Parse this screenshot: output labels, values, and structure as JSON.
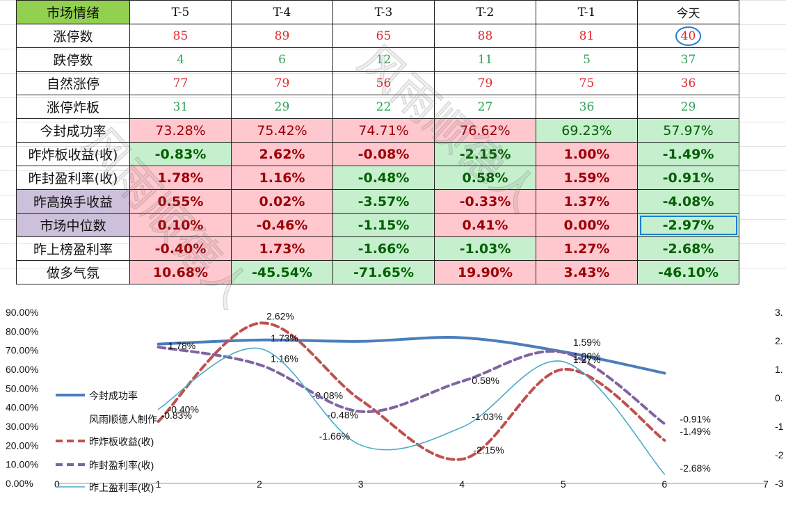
{
  "table": {
    "corner": "市场情绪",
    "headers": [
      "T-5",
      "T-4",
      "T-3",
      "T-2",
      "T-1",
      "今天"
    ],
    "rows": [
      {
        "label": "涨停数",
        "values": [
          "85",
          "89",
          "65",
          "88",
          "81",
          "40"
        ]
      },
      {
        "label": "跌停数",
        "values": [
          "4",
          "6",
          "12",
          "11",
          "5",
          "37"
        ]
      },
      {
        "label": "自然涨停",
        "values": [
          "77",
          "79",
          "56",
          "79",
          "75",
          "36"
        ]
      },
      {
        "label": "涨停炸板",
        "values": [
          "31",
          "29",
          "22",
          "27",
          "36",
          "29"
        ]
      },
      {
        "label": "今封成功率",
        "values": [
          "73.28%",
          "75.42%",
          "74.71%",
          "76.62%",
          "69.23%",
          "57.97%"
        ]
      },
      {
        "label": "昨炸板收益(收)",
        "values": [
          "-0.83%",
          "2.62%",
          "-0.08%",
          "-2.15%",
          "1.00%",
          "-1.49%"
        ]
      },
      {
        "label": "昨封盈利率(收)",
        "values": [
          "1.78%",
          "1.16%",
          "-0.48%",
          "0.58%",
          "1.59%",
          "-0.91%"
        ]
      },
      {
        "label": "昨高换手收益",
        "values": [
          "0.55%",
          "0.02%",
          "-3.57%",
          "-0.33%",
          "1.37%",
          "-4.08%"
        ]
      },
      {
        "label": "市场中位数",
        "values": [
          "0.10%",
          "-0.46%",
          "-1.15%",
          "0.41%",
          "0.00%",
          "-2.97%"
        ]
      },
      {
        "label": "昨上榜盈利率",
        "values": [
          "-0.40%",
          "1.73%",
          "-1.66%",
          "-1.03%",
          "1.27%",
          "-2.68%"
        ]
      },
      {
        "label": "做多气氛",
        "values": [
          "10.68%",
          "-45.54%",
          "-71.65%",
          "19.90%",
          "3.43%",
          "-46.10%"
        ]
      }
    ]
  },
  "watermark": {
    "text_a": "风雨顺德人",
    "text_b": "风雨顺德人"
  },
  "colors": {
    "red_text": "#e0282c",
    "green_text": "#2fa05a",
    "pink_fill": "#ffc7ce",
    "green_fill": "#c6efce",
    "purple_fill": "#ccc0da",
    "header_green": "#92d050",
    "highlight_blue": "#1b7fd6"
  },
  "chart_data": {
    "type": "line",
    "x": [
      1,
      2,
      3,
      4,
      5,
      6
    ],
    "xlim": [
      0,
      7
    ],
    "x_ticks": [
      "0",
      "1",
      "2",
      "3",
      "4",
      "5",
      "6",
      "7"
    ],
    "ylim_left": [
      0,
      90
    ],
    "y_ticks_left": [
      "0.00%",
      "10.00%",
      "20.00%",
      "30.00%",
      "40.00%",
      "50.00%",
      "60.00%",
      "70.00%",
      "80.00%",
      "90.00%"
    ],
    "ylim_right": [
      -3,
      3
    ],
    "y_ticks_right": [
      "3.",
      "2.",
      "1.",
      "0.",
      "-1",
      "-2",
      "-3"
    ],
    "series": [
      {
        "name": "今封成功率",
        "axis": "left",
        "color": "#4a7ebb",
        "style": "solid-thick",
        "values": [
          73.28,
          75.42,
          74.71,
          76.62,
          69.23,
          57.97
        ]
      },
      {
        "name": "昨炸板收益(收)",
        "axis": "right",
        "color": "#c0504d",
        "style": "dashed",
        "values": [
          -0.83,
          2.62,
          -0.08,
          -2.15,
          1.0,
          -1.49
        ],
        "labels": [
          "-0.83%",
          "2.62%",
          "-0.08%",
          "-2.15%",
          "1.00%",
          "-1.49%"
        ]
      },
      {
        "name": "昨封盈利率(收)",
        "axis": "right",
        "color": "#8064a2",
        "style": "dashed",
        "values": [
          1.78,
          1.16,
          -0.48,
          0.58,
          1.59,
          -0.91
        ],
        "labels": [
          "1.78%",
          "1.16%",
          "-0.48%",
          "0.58%",
          "1.59%",
          "-0.91%"
        ]
      },
      {
        "name": "昨上盈利率(收)",
        "axis": "right",
        "color": "#4bacc6",
        "style": "thin",
        "values": [
          -0.4,
          1.73,
          -1.66,
          -1.03,
          1.27,
          -2.68
        ],
        "labels": [
          "-0.40%",
          "1.73%",
          "-1.66%",
          "-1.03%",
          "1.27%",
          "-2.68%"
        ]
      }
    ],
    "legend_entries": [
      "今封成功率",
      "风雨顺德人制作",
      "昨炸板收益(收)",
      "昨封盈利率(收)",
      "昨上盈利率(收)"
    ],
    "legend_position": "left"
  }
}
